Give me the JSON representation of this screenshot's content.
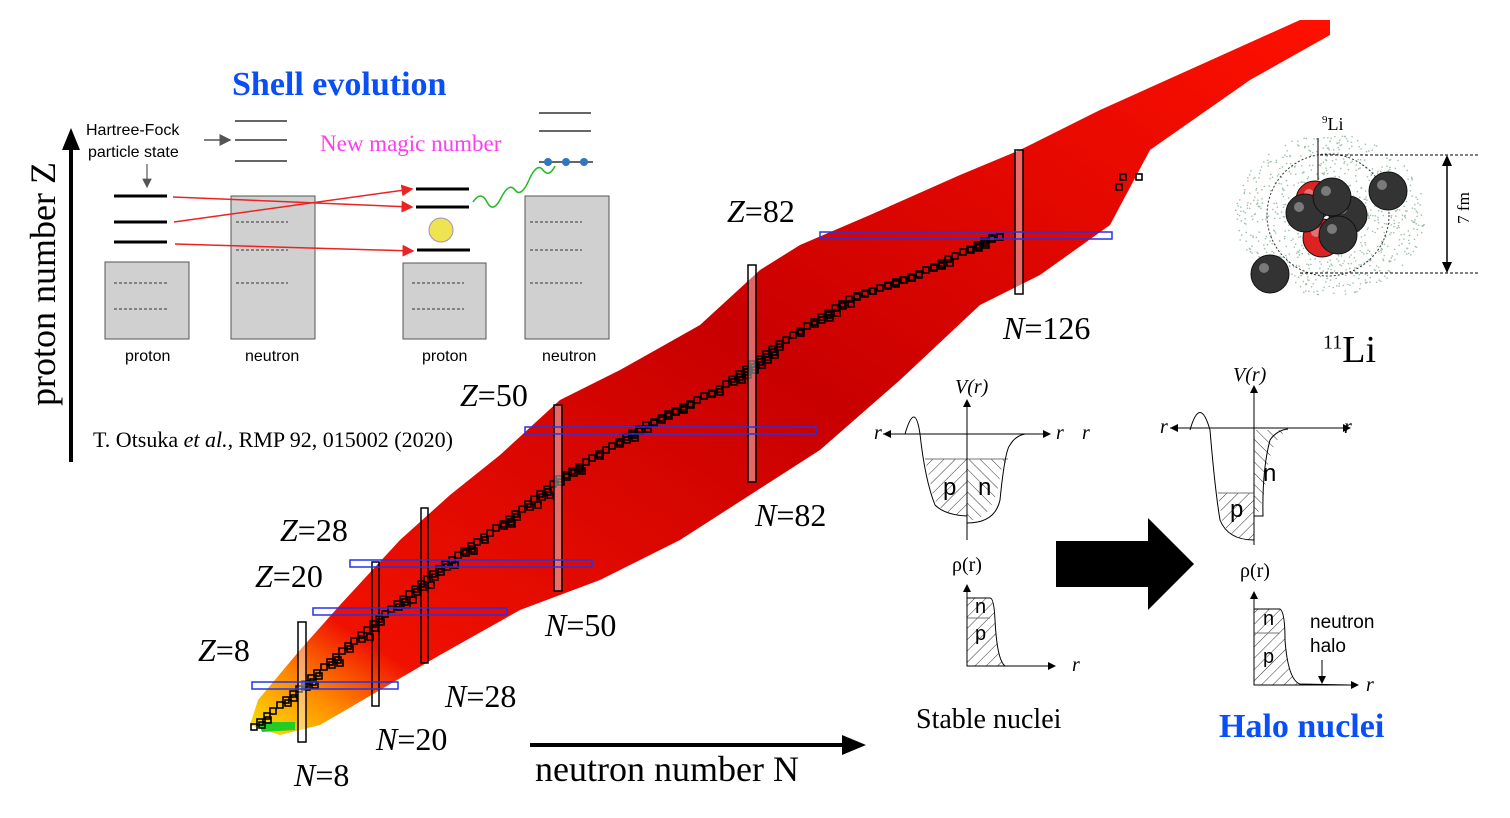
{
  "shell_panel": {
    "title": "Shell evolution",
    "hf_label_1": "Hartree-Fock",
    "hf_label_2": "particle state",
    "new_magic": "New magic number",
    "col_labels": [
      "proton",
      "neutron",
      "proton",
      "neutron"
    ],
    "citation_pre": "T. Otsuka ",
    "citation_em": "et al.",
    "citation_post": ", RMP 92, 015002 (2020)"
  },
  "axes": {
    "y_label": "proton number Z",
    "x_label": "neutron number N"
  },
  "magic": {
    "z": [
      {
        "v": "Z",
        "n": "=82"
      },
      {
        "v": "Z",
        "n": "=50"
      },
      {
        "v": "Z",
        "n": "=28"
      },
      {
        "v": "Z",
        "n": "=20"
      },
      {
        "v": "Z",
        "n": "=8"
      }
    ],
    "n": [
      {
        "v": "N",
        "n": "=126"
      },
      {
        "v": "N",
        "n": "=82"
      },
      {
        "v": "N",
        "n": "=50"
      },
      {
        "v": "N",
        "n": "=28"
      },
      {
        "v": "N",
        "n": "=20"
      },
      {
        "v": "N",
        "n": "=8"
      }
    ]
  },
  "li11": {
    "core_sup": "9",
    "core": "Li",
    "size": "7 fm",
    "sup": "11",
    "name": "Li"
  },
  "potentials": {
    "v_label": "V(r)",
    "rho_label": "ρ(r)",
    "r": "r",
    "p": "p",
    "n": "n",
    "halo_1": "neutron",
    "halo_2": "halo"
  },
  "captions": {
    "stable": "Stable nuclei",
    "halo": "Halo nuclei"
  },
  "colors": {
    "accent_blue": "#0a4ef5",
    "magenta": "#ff3cf0",
    "chart_red": "#e80000"
  }
}
